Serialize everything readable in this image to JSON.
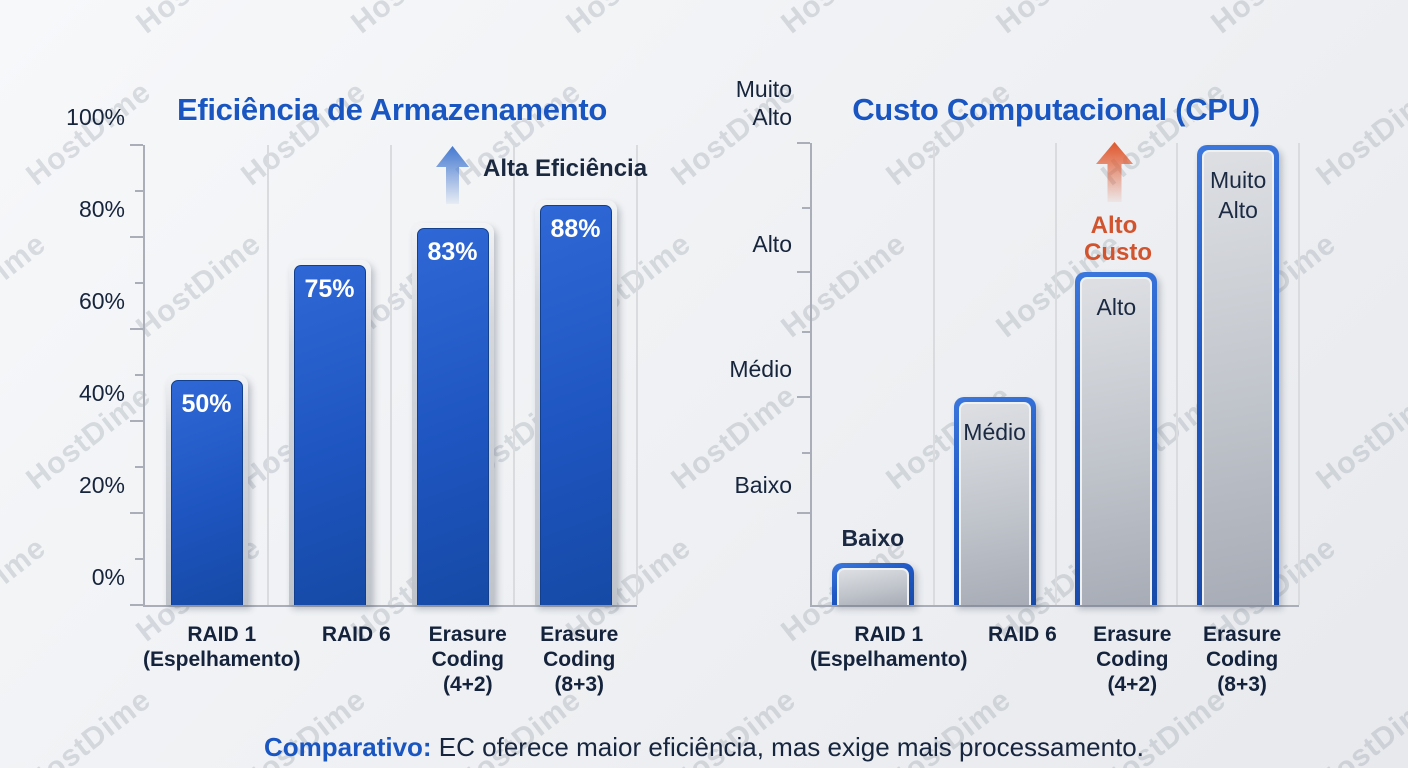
{
  "watermark": {
    "text": "HostDime"
  },
  "caption": {
    "lead": "Comparativo:",
    "text": " EC oferece maior eficiência, mas exige mais processamento."
  },
  "colors": {
    "title_blue": "#1a56c2",
    "bar_blue": "#1e55c0",
    "bar_gray": "#c6cad0",
    "bar_border_blue": "#2059c4",
    "dark_navy_text": "#17263e",
    "annotation_orange": "#d2542e",
    "axis_gray": "#a9aeb8"
  },
  "chart_data": [
    {
      "type": "bar",
      "title": "Eficiência de Armazenamento",
      "categories": [
        "RAID 1\n(Espelhamento)",
        "RAID 6",
        "Erasure\nCoding\n(4+2)",
        "Erasure\nCoding\n(8+3)"
      ],
      "values": [
        50,
        75,
        83,
        88
      ],
      "values_pct": [
        50,
        75,
        83,
        88
      ],
      "bar_labels": [
        "50%",
        "75%",
        "83%",
        "88%"
      ],
      "bar_label_positions": [
        "inside",
        "inside",
        "inside",
        "inside"
      ],
      "bar_style": "blue",
      "xlabel": "",
      "ylabel": "",
      "ylim": [
        0,
        100
      ],
      "yticks": [
        {
          "label": "0%",
          "pos": 0
        },
        {
          "label": "20%",
          "pos": 20
        },
        {
          "label": "40%",
          "pos": 40
        },
        {
          "label": "60%",
          "pos": 60
        },
        {
          "label": "80%",
          "pos": 80
        },
        {
          "label": "100%",
          "pos": 100
        }
      ],
      "minor_tick_pos": [
        10,
        30,
        50,
        70,
        90
      ],
      "grid": "vertical-category-separators",
      "legend": "none",
      "annotation": {
        "text": "Alta Eficiência",
        "arrow": "up",
        "arrow_color": "#4378d0",
        "text_color": "#1b2940"
      }
    },
    {
      "type": "bar",
      "title": "Custo Computacional (CPU)",
      "categories": [
        "RAID 1\n(Espelhamento)",
        "RAID 6",
        "Erasure\nCoding\n(4+2)",
        "Erasure\nCoding\n(8+3)"
      ],
      "values": [
        "Baixo",
        "Médio",
        "Alto",
        "Muito Alto"
      ],
      "values_pct": [
        9,
        45,
        72,
        99.5
      ],
      "bar_labels": [
        "Baixo",
        "Médio",
        "Alto",
        "Muito\nAlto"
      ],
      "bar_label_positions": [
        "above",
        "inside",
        "inside",
        "inside"
      ],
      "bar_style": "gray",
      "xlabel": "",
      "ylabel": "",
      "ylim": [
        "Baixo",
        "Muito Alto"
      ],
      "yticks": [
        {
          "label": "Baixo",
          "pos": 20
        },
        {
          "label": "Médio",
          "pos": 45
        },
        {
          "label": "Alto",
          "pos": 72
        },
        {
          "label": "Muito\nAlto",
          "pos": 100
        }
      ],
      "minor_tick_pos": [
        33,
        59,
        86
      ],
      "grid": "vertical-category-separators",
      "legend": "none",
      "annotation": {
        "text": "Alto\nCusto",
        "arrow": "up",
        "arrow_color": "#e0562b",
        "text_color": "#d2542e"
      }
    }
  ]
}
